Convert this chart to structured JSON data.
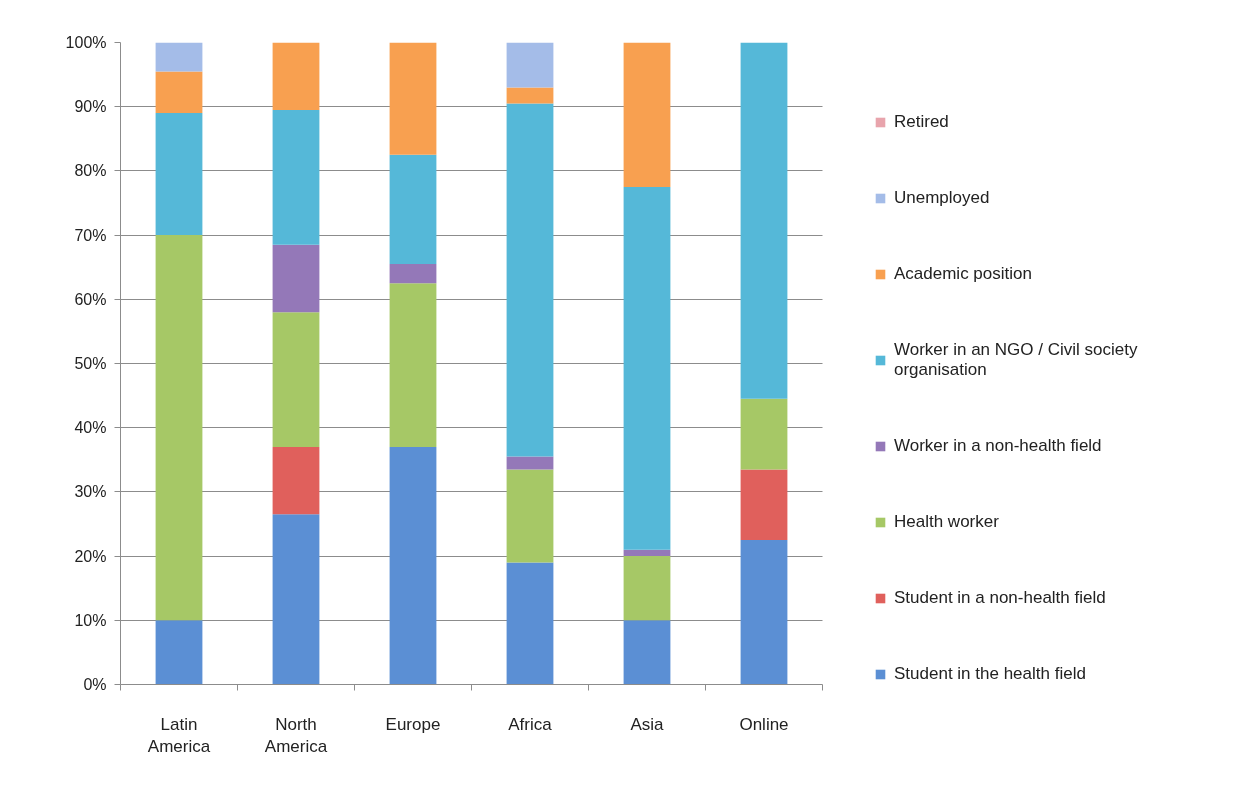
{
  "chart_data": {
    "type": "bar",
    "stacked": true,
    "categories": [
      "Latin America",
      "North America",
      "Europe",
      "Africa",
      "Asia",
      "Online"
    ],
    "series": [
      {
        "name": "Student in the health field",
        "color": "#5b8fd4",
        "values": [
          10,
          26.5,
          37,
          19,
          10,
          22.5
        ]
      },
      {
        "name": "Student in a non-health field",
        "color": "#e0605c",
        "values": [
          0,
          10.5,
          0,
          0,
          0,
          11
        ]
      },
      {
        "name": "Health worker",
        "color": "#a6c866",
        "values": [
          60,
          21,
          25.5,
          14.5,
          10,
          11
        ]
      },
      {
        "name": "Worker in a non-health field",
        "color": "#9478b8",
        "values": [
          0,
          10.5,
          3,
          2,
          1,
          0
        ]
      },
      {
        "name": "Worker in an NGO / Civil society organisation",
        "color": "#55b8d8",
        "values": [
          19,
          21,
          17,
          55,
          56.5,
          55.5
        ]
      },
      {
        "name": "Academic position",
        "color": "#f8a050",
        "values": [
          6.5,
          10.5,
          17.5,
          2.5,
          22.5,
          0
        ]
      },
      {
        "name": "Unemployed",
        "color": "#a4bce8",
        "values": [
          4.5,
          0,
          0,
          7,
          0,
          0
        ]
      },
      {
        "name": "Retired",
        "color": "#e8a4ac",
        "values": [
          0,
          0,
          0,
          0,
          0,
          0
        ]
      }
    ],
    "ylim": [
      0,
      100
    ],
    "yticks": [
      {
        "value": 0,
        "label": "0%"
      },
      {
        "value": 10,
        "label": "10%"
      },
      {
        "value": 20,
        "label": "20%"
      },
      {
        "value": 30,
        "label": "30%"
      },
      {
        "value": 40,
        "label": "40%"
      },
      {
        "value": 50,
        "label": "50%"
      },
      {
        "value": 60,
        "label": "60%"
      },
      {
        "value": 70,
        "label": "70%"
      },
      {
        "value": 80,
        "label": "80%"
      },
      {
        "value": 90,
        "label": "90%"
      },
      {
        "value": 100,
        "label": "100%"
      }
    ],
    "grid": "y",
    "legend": "right"
  }
}
